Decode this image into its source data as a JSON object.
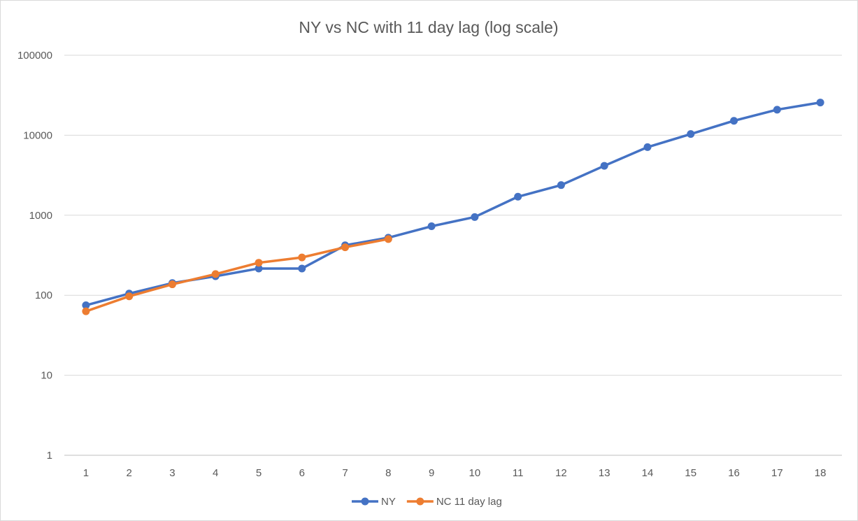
{
  "chart_data": {
    "type": "line",
    "title": "NY vs NC with 11 day lag (log scale)",
    "xlabel": "",
    "ylabel": "",
    "y_scale": "log",
    "ylim": [
      1,
      100000
    ],
    "y_ticks": [
      "1",
      "10",
      "100",
      "1000",
      "10000",
      "100000"
    ],
    "categories": [
      "1",
      "2",
      "3",
      "4",
      "5",
      "6",
      "7",
      "8",
      "9",
      "10",
      "11",
      "12",
      "13",
      "14",
      "15",
      "16",
      "17",
      "18"
    ],
    "grid": true,
    "legend_position": "bottom",
    "series": [
      {
        "name": "NY",
        "color": "#4472c4",
        "values": [
          75,
          105,
          142,
          173,
          216,
          216,
          421,
          524,
          729,
          950,
          1706,
          2382,
          4152,
          7102,
          10356,
          15168,
          20875,
          25665
        ]
      },
      {
        "name": "NC 11 day lag",
        "color": "#ed7d31",
        "values": [
          63,
          97,
          137,
          184,
          255,
          297,
          398,
          504,
          null,
          null,
          null,
          null,
          null,
          null,
          null,
          null,
          null,
          null
        ]
      }
    ]
  }
}
